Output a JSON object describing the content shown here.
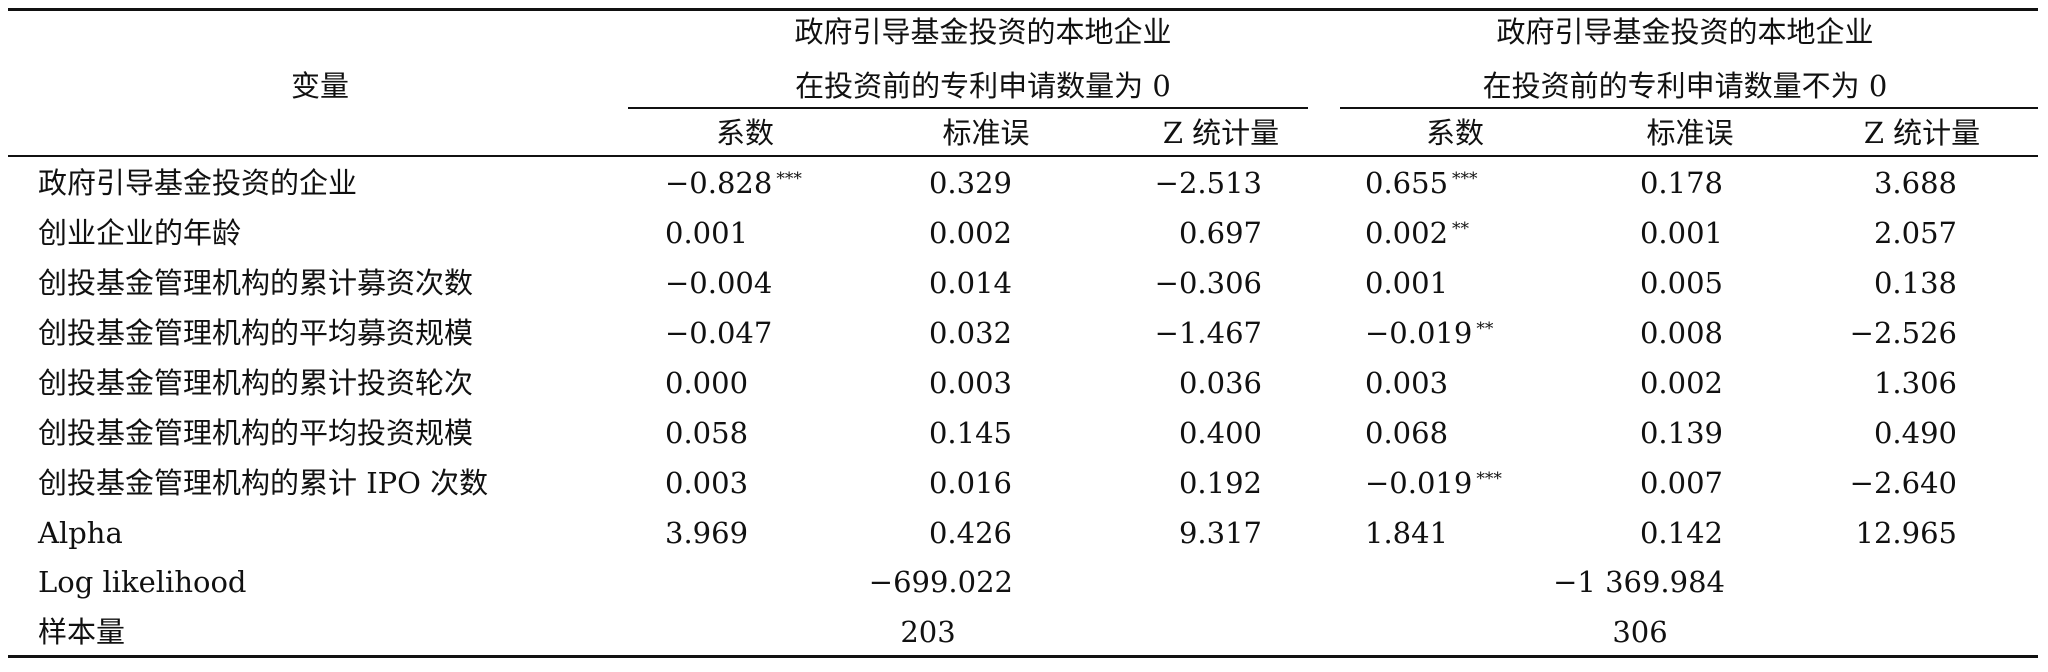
{
  "table": {
    "header": {
      "variable_label": "变量",
      "group1_line1": "政府引导基金投资的本地企业",
      "group1_line2": "在投资前的专利申请数量为 0",
      "group2_line1": "政府引导基金投资的本地企业",
      "group2_line2": "在投资前的专利申请数量不为 0",
      "columns": [
        "系数",
        "标准误",
        "Z 统计量",
        "系数",
        "标准误",
        "Z 统计量"
      ]
    },
    "rows": [
      {
        "label": "政府引导基金投资的企业",
        "g1_coef": "−0.828",
        "g1_star": "***",
        "g1_se": "0.329",
        "g1_z": "−2.513",
        "g2_coef": "0.655",
        "g2_star": "***",
        "g2_se": "0.178",
        "g2_z": "3.688"
      },
      {
        "label": "创业企业的年龄",
        "g1_coef": "0.001",
        "g1_star": "",
        "g1_se": "0.002",
        "g1_z": "0.697",
        "g2_coef": "0.002",
        "g2_star": "**",
        "g2_se": "0.001",
        "g2_z": "2.057"
      },
      {
        "label": "创投基金管理机构的累计募资次数",
        "g1_coef": "−0.004",
        "g1_star": "",
        "g1_se": "0.014",
        "g1_z": "−0.306",
        "g2_coef": "0.001",
        "g2_star": "",
        "g2_se": "0.005",
        "g2_z": "0.138"
      },
      {
        "label": "创投基金管理机构的平均募资规模",
        "g1_coef": "−0.047",
        "g1_star": "",
        "g1_se": "0.032",
        "g1_z": "−1.467",
        "g2_coef": "−0.019",
        "g2_star": "**",
        "g2_se": "0.008",
        "g2_z": "−2.526"
      },
      {
        "label": "创投基金管理机构的累计投资轮次",
        "g1_coef": "0.000",
        "g1_star": "",
        "g1_se": "0.003",
        "g1_z": "0.036",
        "g2_coef": "0.003",
        "g2_star": "",
        "g2_se": "0.002",
        "g2_z": "1.306"
      },
      {
        "label": "创投基金管理机构的平均投资规模",
        "g1_coef": "0.058",
        "g1_star": "",
        "g1_se": "0.145",
        "g1_z": "0.400",
        "g2_coef": "0.068",
        "g2_star": "",
        "g2_se": "0.139",
        "g2_z": "0.490"
      },
      {
        "label": "创投基金管理机构的累计 IPO 次数",
        "g1_coef": "0.003",
        "g1_star": "",
        "g1_se": "0.016",
        "g1_z": "0.192",
        "g2_coef": "−0.019",
        "g2_star": "***",
        "g2_se": "0.007",
        "g2_z": "−2.640"
      },
      {
        "label": "Alpha",
        "g1_coef": "3.969",
        "g1_star": "",
        "g1_se": "0.426",
        "g1_z": "9.317",
        "g2_coef": "1.841",
        "g2_star": "",
        "g2_se": "0.142",
        "g2_z": "12.965"
      }
    ],
    "loglik": {
      "label": "Log likelihood",
      "g1": "−699.022",
      "g2": "−1 369.984"
    },
    "sample": {
      "label": "样本量",
      "g1": "203",
      "g2": "306"
    }
  }
}
